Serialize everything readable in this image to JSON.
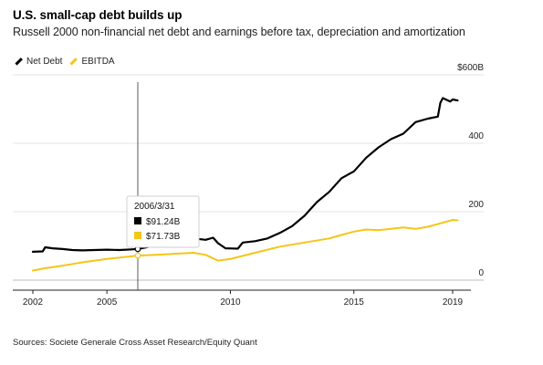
{
  "title": "U.S. small-cap debt builds up",
  "subtitle": "Russell 2000 non-financial net debt and earnings before tax, depreciation and amortization",
  "source": "Sources: Societe Generale Cross Asset Research/Equity Quant",
  "colors": {
    "net_debt": "#000000",
    "ebitda": "#f5c518",
    "grid": "#e6e6e6"
  },
  "chart_data": {
    "type": "line",
    "title": "U.S. small-cap debt builds up",
    "subtitle": "Russell 2000 non-financial net debt and earnings before tax, depreciation and amortization",
    "xlabel": "",
    "ylabel": "",
    "xlim": [
      2002,
      2019.3
    ],
    "ylim": [
      0,
      600
    ],
    "y_unit_label": "$600B",
    "x_ticks": [
      "2002",
      "2005",
      "2010",
      "2015",
      "2019"
    ],
    "y_ticks": [
      {
        "value": 0,
        "label": "0"
      },
      {
        "value": 200,
        "label": "200"
      },
      {
        "value": 400,
        "label": "400"
      },
      {
        "value": 600,
        "label": "$600B"
      }
    ],
    "grid": "horizontal",
    "legend_position": "top-left",
    "series": [
      {
        "name": "Net Debt",
        "color": "#000000",
        "points": [
          [
            2002.0,
            83
          ],
          [
            2002.4,
            84
          ],
          [
            2002.5,
            96
          ],
          [
            2002.8,
            93
          ],
          [
            2003.2,
            91
          ],
          [
            2003.6,
            88
          ],
          [
            2004.0,
            87
          ],
          [
            2004.5,
            88
          ],
          [
            2005.0,
            89
          ],
          [
            2005.5,
            88
          ],
          [
            2006.0,
            90
          ],
          [
            2006.25,
            91
          ],
          [
            2006.6,
            96
          ],
          [
            2007.0,
            103
          ],
          [
            2007.5,
            112
          ],
          [
            2008.0,
            118
          ],
          [
            2008.5,
            122
          ],
          [
            2009.0,
            118
          ],
          [
            2009.3,
            124
          ],
          [
            2009.5,
            108
          ],
          [
            2009.8,
            93
          ],
          [
            2010.3,
            92
          ],
          [
            2010.5,
            110
          ],
          [
            2011.0,
            114
          ],
          [
            2011.5,
            122
          ],
          [
            2012.0,
            138
          ],
          [
            2012.5,
            158
          ],
          [
            2013.0,
            188
          ],
          [
            2013.5,
            228
          ],
          [
            2014.0,
            258
          ],
          [
            2014.5,
            298
          ],
          [
            2015.0,
            318
          ],
          [
            2015.5,
            358
          ],
          [
            2016.0,
            388
          ],
          [
            2016.5,
            412
          ],
          [
            2017.0,
            428
          ],
          [
            2017.5,
            462
          ],
          [
            2018.0,
            472
          ],
          [
            2018.4,
            478
          ],
          [
            2018.5,
            518
          ],
          [
            2018.6,
            532
          ],
          [
            2018.9,
            522
          ],
          [
            2019.0,
            528
          ],
          [
            2019.2,
            525
          ]
        ],
        "annotations": [
          {
            "x": "2006/3/31",
            "value": "$91.24B"
          }
        ]
      },
      {
        "name": "EBITDA",
        "color": "#f5c518",
        "points": [
          [
            2002.0,
            28
          ],
          [
            2002.5,
            35
          ],
          [
            2003.0,
            40
          ],
          [
            2003.5,
            46
          ],
          [
            2004.0,
            52
          ],
          [
            2005.0,
            62
          ],
          [
            2006.25,
            71.73
          ],
          [
            2007.0,
            74
          ],
          [
            2008.0,
            78
          ],
          [
            2008.5,
            80
          ],
          [
            2009.0,
            74
          ],
          [
            2009.5,
            57
          ],
          [
            2010.0,
            62
          ],
          [
            2010.5,
            71
          ],
          [
            2011.0,
            80
          ],
          [
            2012.0,
            98
          ],
          [
            2013.0,
            110
          ],
          [
            2014.0,
            122
          ],
          [
            2014.5,
            132
          ],
          [
            2015.0,
            142
          ],
          [
            2015.5,
            148
          ],
          [
            2016.0,
            146
          ],
          [
            2016.5,
            150
          ],
          [
            2017.0,
            154
          ],
          [
            2017.5,
            150
          ],
          [
            2018.0,
            156
          ],
          [
            2018.5,
            166
          ],
          [
            2019.0,
            176
          ],
          [
            2019.2,
            175
          ]
        ],
        "annotations": [
          {
            "x": "2006/3/31",
            "value": "$71.73B"
          }
        ]
      }
    ],
    "tooltip": {
      "date": "2006/3/31",
      "x": 2006.25,
      "rows": [
        {
          "series": "Net Debt",
          "color": "#000000",
          "value": "$91.24B"
        },
        {
          "series": "EBITDA",
          "color": "#f5c518",
          "value": "$71.73B"
        }
      ]
    }
  }
}
